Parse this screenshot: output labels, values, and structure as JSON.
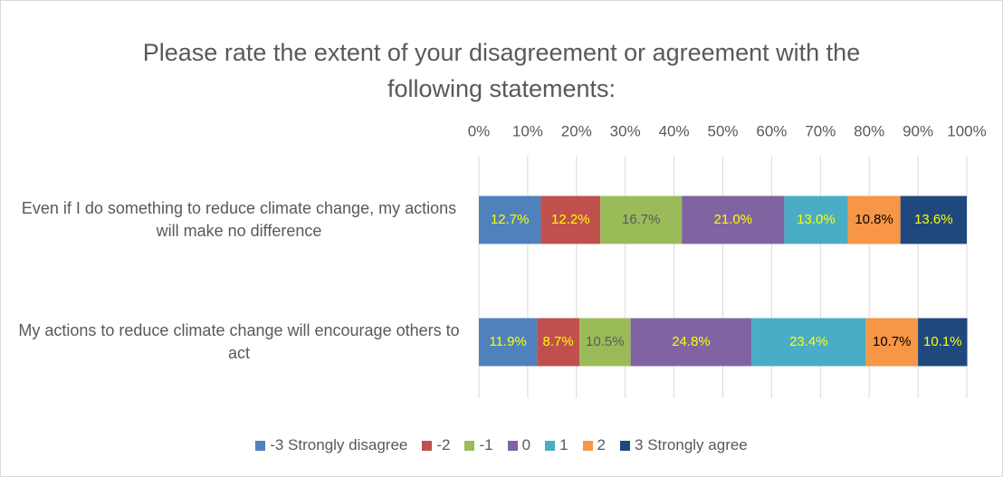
{
  "chart_data": {
    "type": "stacked_bar_horizontal",
    "title": "Please rate the extent of your disagreement or agreement with the following statements:",
    "categories": [
      "Even if I do something to reduce climate change, my actions will make no difference",
      "My actions to reduce climate change will encourage others to act"
    ],
    "series": [
      {
        "name": "-3 Strongly disagree",
        "color": "#4f81bd",
        "values": [
          12.7,
          11.9
        ],
        "value_labels": [
          "12.7%",
          "11.9%"
        ],
        "label_colors": [
          "#ffff00",
          "#ffff00"
        ]
      },
      {
        "name": "-2",
        "color": "#c0504d",
        "values": [
          12.2,
          8.7
        ],
        "value_labels": [
          "12.2%",
          "8.7%"
        ],
        "label_colors": [
          "#ffff00",
          "#ffff00"
        ]
      },
      {
        "name": "-1",
        "color": "#9bbb59",
        "values": [
          16.7,
          10.5
        ],
        "value_labels": [
          "16.7%",
          "10.5%"
        ],
        "label_colors": [
          "#595959",
          "#595959"
        ]
      },
      {
        "name": "0",
        "color": "#8064a2",
        "values": [
          21.0,
          24.8
        ],
        "value_labels": [
          "21.0%",
          "24.8%"
        ],
        "label_colors": [
          "#ffff00",
          "#ffff00"
        ]
      },
      {
        "name": "1",
        "color": "#4bacc6",
        "values": [
          13.0,
          23.4
        ],
        "value_labels": [
          "13.0%",
          "23.4%"
        ],
        "label_colors": [
          "#ffff00",
          "#ffff00"
        ]
      },
      {
        "name": "2",
        "color": "#f79646",
        "values": [
          10.8,
          10.7
        ],
        "value_labels": [
          "10.8%",
          "10.7%"
        ],
        "label_colors": [
          "#000000",
          "#000000"
        ]
      },
      {
        "name": "3 Strongly agree",
        "color": "#1f497d",
        "values": [
          13.6,
          10.1
        ],
        "value_labels": [
          "13.6%",
          "10.1%"
        ],
        "label_colors": [
          "#ffff00",
          "#ffff00"
        ]
      }
    ],
    "xlim": [
      0,
      100
    ],
    "xticks": [
      {
        "value": 0,
        "label": "0%"
      },
      {
        "value": 10,
        "label": "10%"
      },
      {
        "value": 20,
        "label": "20%"
      },
      {
        "value": 30,
        "label": "30%"
      },
      {
        "value": 40,
        "label": "40%"
      },
      {
        "value": 50,
        "label": "50%"
      },
      {
        "value": 60,
        "label": "60%"
      },
      {
        "value": 70,
        "label": "70%"
      },
      {
        "value": 80,
        "label": "80%"
      },
      {
        "value": 90,
        "label": "90%"
      },
      {
        "value": 100,
        "label": "100%"
      }
    ],
    "grid": true,
    "legend": "bottom"
  }
}
